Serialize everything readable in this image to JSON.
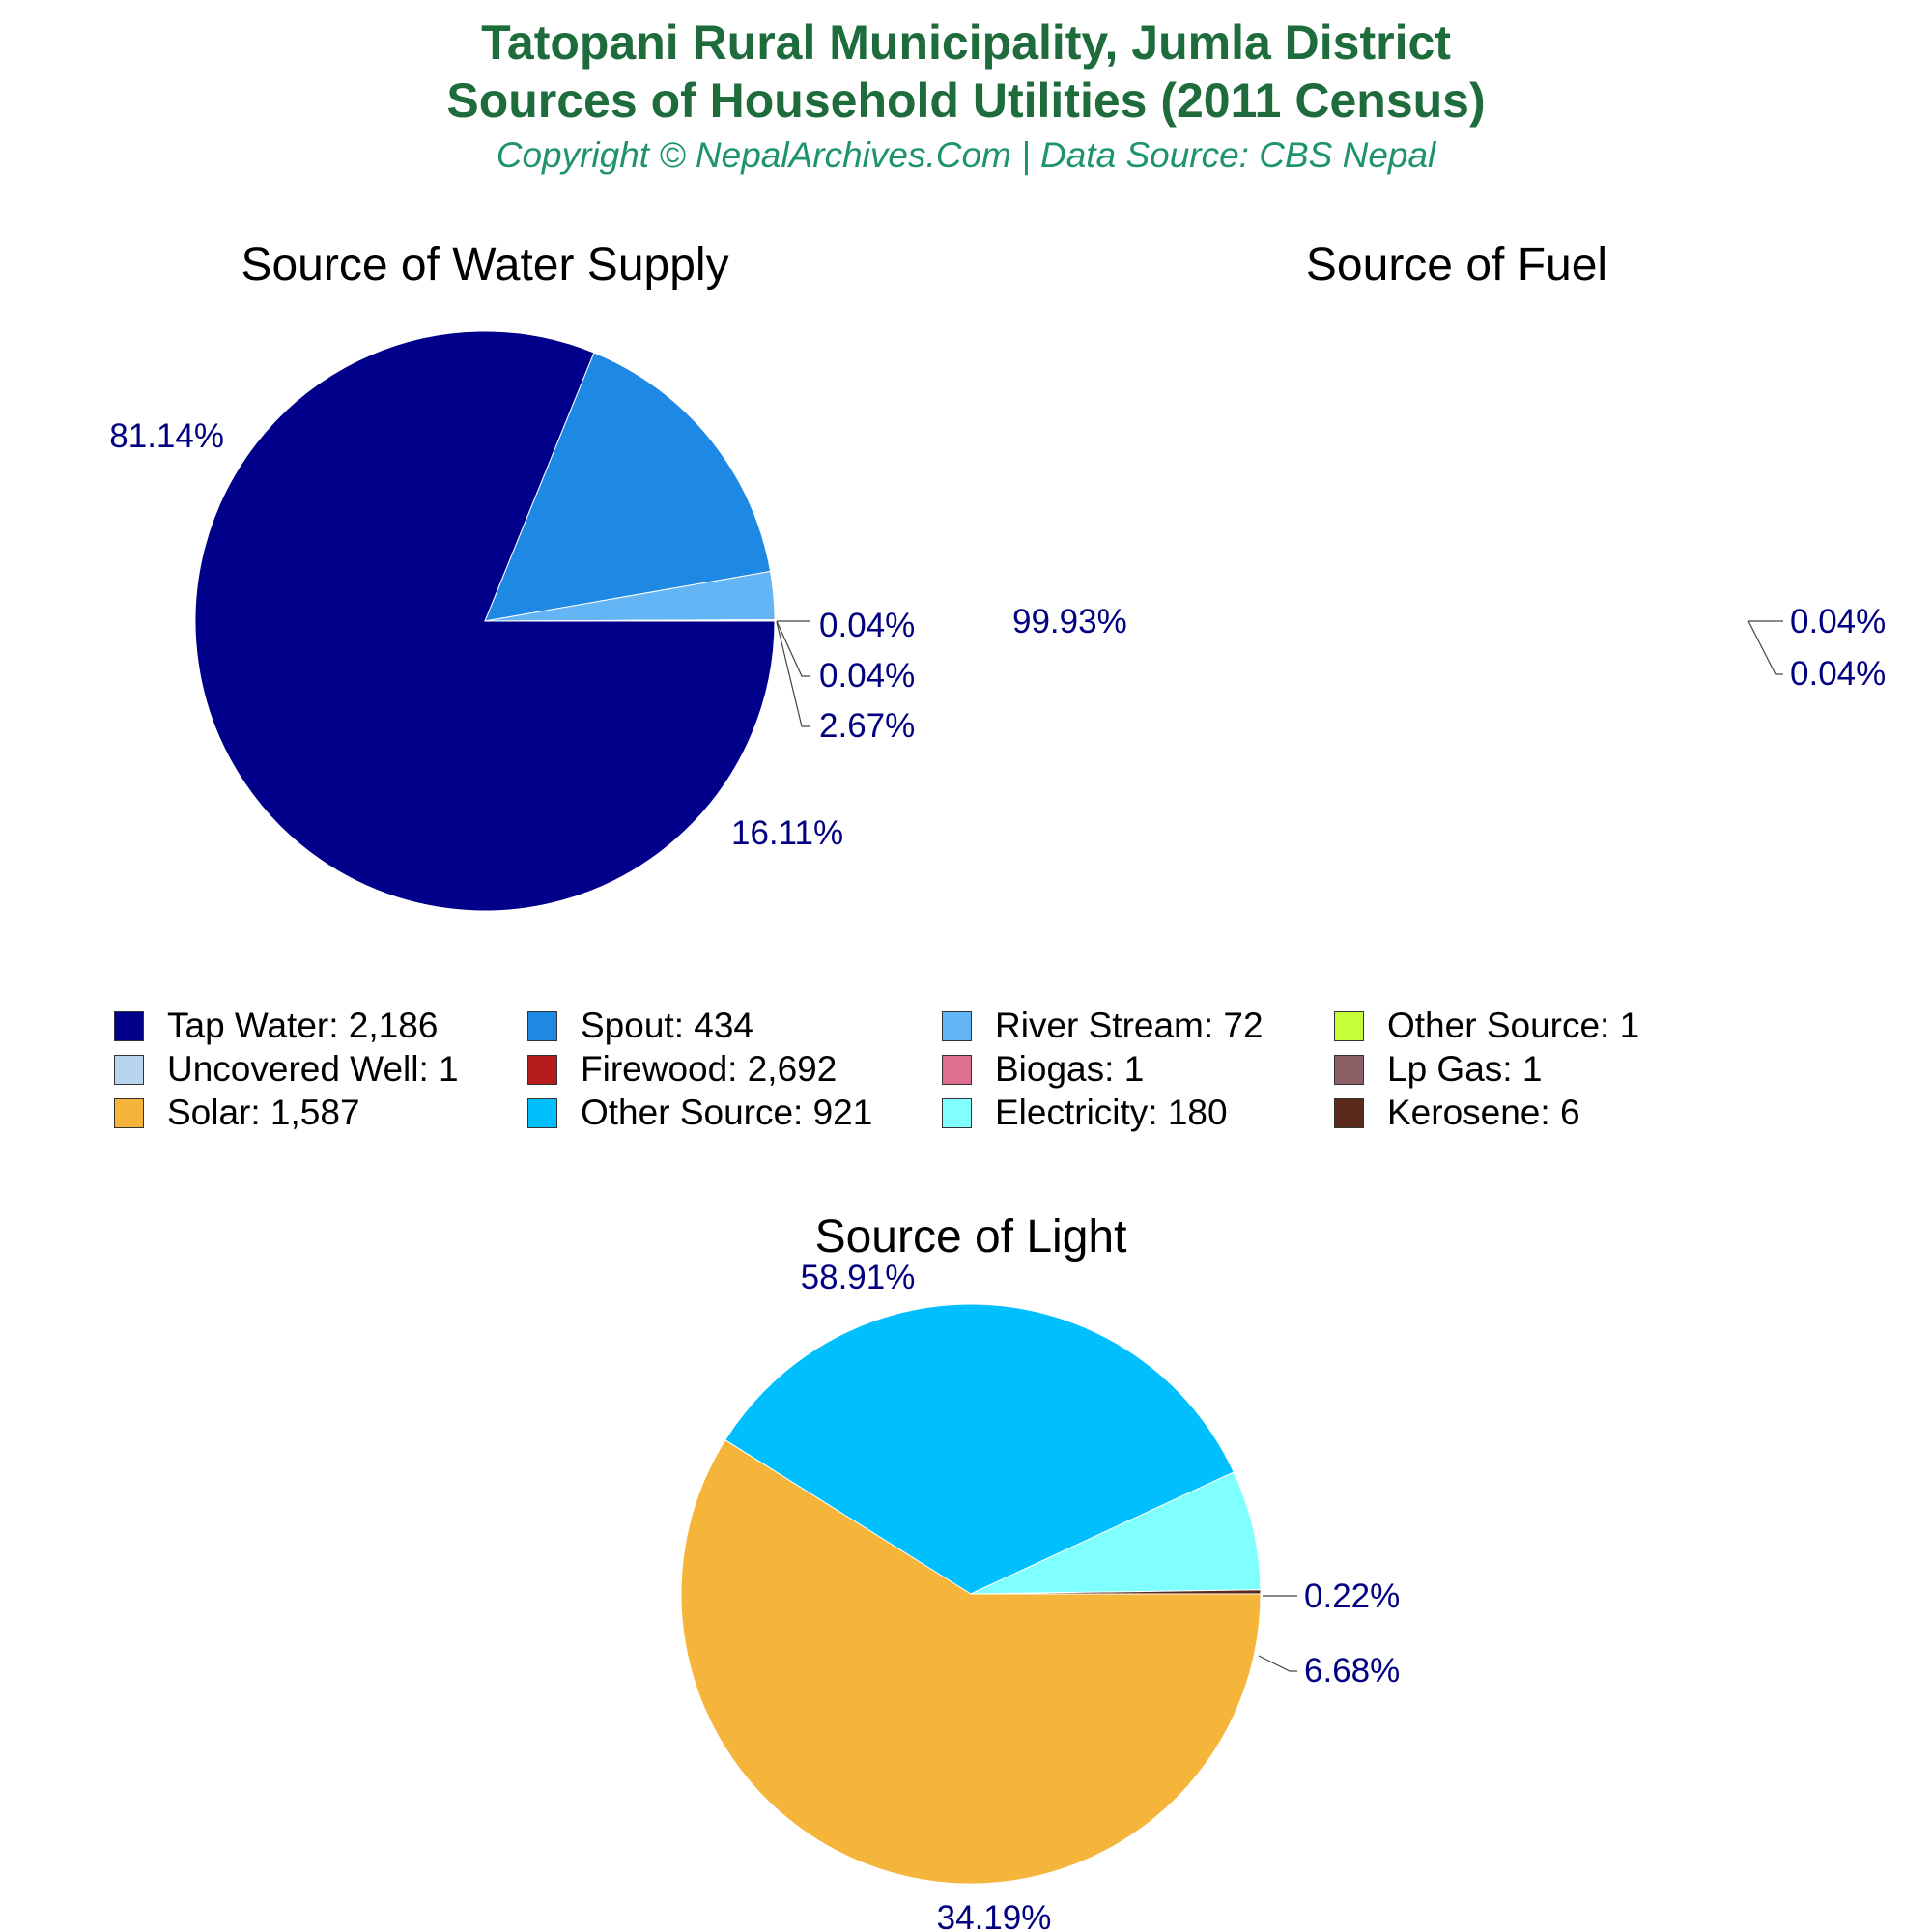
{
  "header": {
    "title_line1": "Tatopani Rural Municipality, Jumla District",
    "title_line2": "Sources of Household Utilities (2011 Census)",
    "subtitle": "Copyright © NepalArchives.Com | Data Source: CBS Nepal"
  },
  "colors": {
    "title": "#1e6b3c",
    "subtitle": "#1f9370",
    "percent_labels": "#000080"
  },
  "legend": [
    {
      "label": "Tap Water: 2,186",
      "color": "#00008b"
    },
    {
      "label": "Spout: 434",
      "color": "#1e88e5"
    },
    {
      "label": "River Stream: 72",
      "color": "#64b5f6"
    },
    {
      "label": "Other Source: 1",
      "color": "#c6ff3a"
    },
    {
      "label": "Uncovered Well: 1",
      "color": "#b8d4ee"
    },
    {
      "label": "Firewood: 2,692",
      "color": "#b71c1c"
    },
    {
      "label": "Biogas: 1",
      "color": "#e07090"
    },
    {
      "label": "Lp Gas: 1",
      "color": "#8d5f66"
    },
    {
      "label": "Solar: 1,587",
      "color": "#f5b43a"
    },
    {
      "label": "Other Source: 921",
      "color": "#00bfff"
    },
    {
      "label": "Electricity: 180",
      "color": "#80ffff"
    },
    {
      "label": "Kerosene: 6",
      "color": "#5a2a1c"
    }
  ],
  "chart_data": [
    {
      "type": "pie",
      "title": "Source of Water Supply",
      "start_angle_deg": 0,
      "slices": [
        {
          "name": "Tap Water",
          "value": 2186,
          "label": "81.14%",
          "color": "#00008b"
        },
        {
          "name": "Spout",
          "value": 434,
          "label": "16.11%",
          "color": "#1e88e5"
        },
        {
          "name": "River Stream",
          "value": 72,
          "label": "2.67%",
          "color": "#64b5f6"
        },
        {
          "name": "Other Source",
          "value": 1,
          "label": "0.04%",
          "color": "#c6ff3a"
        },
        {
          "name": "Uncovered Well",
          "value": 1,
          "label": "0.04%",
          "color": "#b8d4ee"
        }
      ]
    },
    {
      "type": "pie",
      "title": "Source of Fuel",
      "start_angle_deg": 0,
      "slices": [
        {
          "name": "Firewood",
          "value": 2692,
          "label": "99.93%",
          "color": "#b71c1c"
        },
        {
          "name": "Biogas",
          "value": 1,
          "label": "0.04%",
          "color": "#e07090"
        },
        {
          "name": "Lp Gas",
          "value": 1,
          "label": "0.04%",
          "color": "#8d5f66"
        }
      ]
    },
    {
      "type": "pie",
      "title": "Source of Light",
      "start_angle_deg": 0,
      "slices": [
        {
          "name": "Solar",
          "value": 1587,
          "label": "58.91%",
          "color": "#f5b43a"
        },
        {
          "name": "Other Source",
          "value": 921,
          "label": "34.19%",
          "color": "#00bfff"
        },
        {
          "name": "Electricity",
          "value": 180,
          "label": "6.68%",
          "color": "#80ffff"
        },
        {
          "name": "Kerosene",
          "value": 6,
          "label": "0.22%",
          "color": "#5a2a1c"
        }
      ]
    }
  ]
}
